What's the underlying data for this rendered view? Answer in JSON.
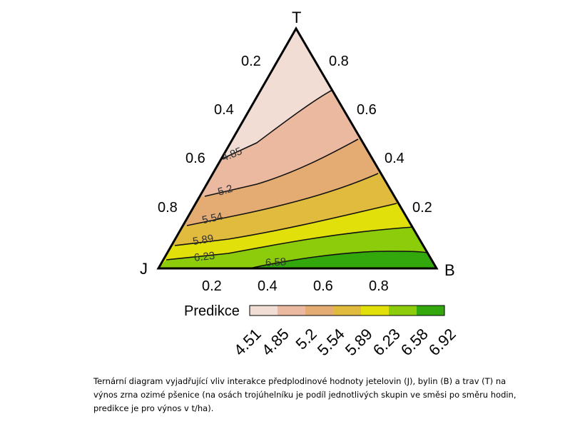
{
  "vertices": {
    "top": "T",
    "left": "J",
    "right": "B"
  },
  "axis_ticks": {
    "left_edge": [
      "0.2",
      "0.4",
      "0.6",
      "0.8"
    ],
    "right_edge": [
      "0.8",
      "0.6",
      "0.4",
      "0.2"
    ],
    "bottom_edge": [
      "0.2",
      "0.4",
      "0.6",
      "0.8"
    ]
  },
  "contour_labels": [
    "4.85",
    "5.2",
    "5.54",
    "5.89",
    "6.23",
    "6.58"
  ],
  "legend": {
    "title": "Predikce",
    "breaks": [
      "4.51",
      "4.85",
      "5.2",
      "5.54",
      "5.89",
      "6.23",
      "6.58",
      "6.92"
    ],
    "colors": [
      "#f2ddd5",
      "#eab99f",
      "#e4ac73",
      "#e0bb3e",
      "#e2e00a",
      "#8ccc0a",
      "#33a80c"
    ]
  },
  "caption": "Ternární diagram vyjadřující vliv interakce předplodinové hodnoty jetelovin (J), bylin (B) a trav (T) na výnos zrna ozimé pšenice (na osách trojúhelníku je podíl jednotlivých skupin ve směsi po směru hodin, predikce je pro výnos v t/ha)."
}
